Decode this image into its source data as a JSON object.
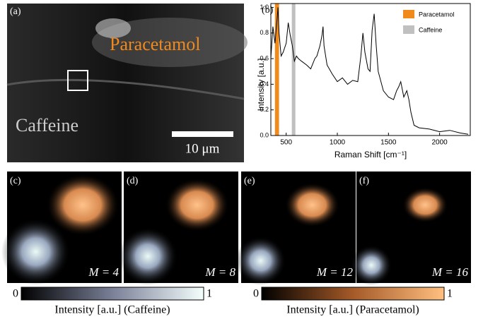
{
  "chart_data": {
    "type": "line",
    "panel_label": "(b)",
    "xlabel": "Raman Shift [cm⁻¹]",
    "ylabel": "Intensity [a.u.]",
    "xlim": [
      350,
      2300
    ],
    "ylim": [
      0,
      1.03
    ],
    "xticks": [
      500,
      1000,
      1500,
      2000
    ],
    "yticks": [
      {
        "value": 0,
        "label": "0.0"
      },
      0.2,
      0.4,
      0.6,
      0.8,
      {
        "value": 1,
        "label": "1.0"
      }
    ],
    "bands": [
      {
        "name": "Paracetamol",
        "color": "#f08a1c",
        "x": [
          390,
          430
        ]
      },
      {
        "name": "Caffeine",
        "color": "#c0c0c0",
        "x": [
          555,
          590
        ]
      }
    ],
    "series": [
      {
        "color": "#000000",
        "x": [
          350,
          370,
          390,
          410,
          420,
          430,
          450,
          470,
          500,
          520,
          540,
          560,
          580,
          600,
          620,
          650,
          700,
          740,
          780,
          800,
          830,
          850,
          860,
          870,
          900,
          950,
          1000,
          1050,
          1100,
          1150,
          1200,
          1230,
          1250,
          1270,
          1300,
          1320,
          1340,
          1360,
          1380,
          1400,
          1450,
          1500,
          1550,
          1580,
          1600,
          1620,
          1650,
          1680,
          1700,
          1720,
          1750,
          1800,
          1900,
          2000,
          2100,
          2200,
          2280
        ],
        "values": [
          0.6,
          0.85,
          0.72,
          0.9,
          1.0,
          0.8,
          0.62,
          0.65,
          0.72,
          0.88,
          0.78,
          0.7,
          0.58,
          0.62,
          0.6,
          0.58,
          0.55,
          0.52,
          0.6,
          0.62,
          0.7,
          0.78,
          0.85,
          0.7,
          0.55,
          0.48,
          0.42,
          0.45,
          0.4,
          0.43,
          0.42,
          0.62,
          0.8,
          0.65,
          0.52,
          0.5,
          0.82,
          0.95,
          0.7,
          0.5,
          0.35,
          0.3,
          0.28,
          0.35,
          0.38,
          0.42,
          0.3,
          0.35,
          0.28,
          0.18,
          0.08,
          0.06,
          0.05,
          0.03,
          0.04,
          0.02,
          0.01
        ]
      }
    ]
  },
  "panel_a": {
    "label": "(a)",
    "paracetamol": "Paracetamol",
    "caffeine": "Caffeine",
    "scale_bar": "10 μm"
  },
  "panels": [
    {
      "label": "(c)",
      "m": "M = 4"
    },
    {
      "label": "(d)",
      "m": "M = 8"
    },
    {
      "label": "(e)",
      "m": "M = 12"
    },
    {
      "label": "(f)",
      "m": "M = 16"
    }
  ],
  "colorbars": [
    {
      "min": "0",
      "max": "1",
      "label": "Intensity [a.u.] (Caffeine)"
    },
    {
      "min": "0",
      "max": "1",
      "label": "Intensity [a.u.] (Paracetamol)"
    }
  ]
}
